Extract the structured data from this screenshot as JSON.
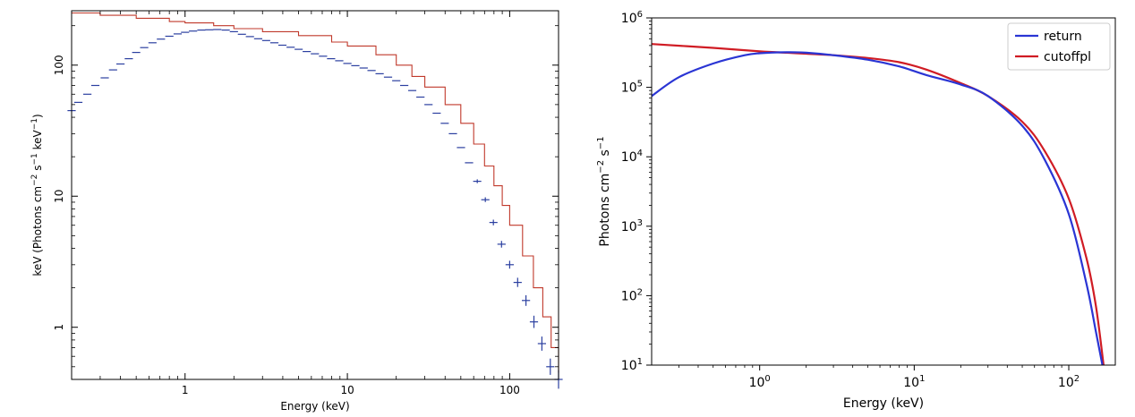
{
  "chart_data": [
    {
      "type": "line",
      "xlabel": "Energy (keV)",
      "ylabel": "keV (Photons cm^-2 s^-1 keV^-1)",
      "xscale": "log",
      "yscale": "log",
      "xlim": [
        0.2,
        200
      ],
      "ylim": [
        0.4,
        260
      ],
      "x_tick_labels": [
        {
          "v": 1,
          "t": "1"
        },
        {
          "v": 10,
          "t": "10"
        },
        {
          "v": 100,
          "t": "100"
        }
      ],
      "y_tick_labels": [
        {
          "v": 1,
          "t": "1"
        },
        {
          "v": 10,
          "t": "10"
        },
        {
          "v": 100,
          "t": "100"
        }
      ],
      "series": [
        {
          "role": "data-points",
          "color": "#2b3fa0",
          "x": [
            0.2,
            0.22,
            0.25,
            0.28,
            0.32,
            0.36,
            0.4,
            0.45,
            0.5,
            0.56,
            0.63,
            0.71,
            0.8,
            0.9,
            1.0,
            1.12,
            1.26,
            1.41,
            1.58,
            1.78,
            2.0,
            2.24,
            2.51,
            2.82,
            3.16,
            3.55,
            3.98,
            4.47,
            5.01,
            5.62,
            6.31,
            7.08,
            7.94,
            8.91,
            10.0,
            11.2,
            12.6,
            14.1,
            15.8,
            17.8,
            20.0,
            22.4,
            25.1,
            28.2,
            31.6,
            35.5,
            39.8,
            44.7,
            50.1,
            56.2,
            63.1,
            70.8,
            79.4,
            89.1,
            100,
            112,
            126,
            141,
            158,
            178,
            200
          ],
          "y": [
            45,
            52,
            60,
            70,
            80,
            92,
            102,
            112,
            125,
            136,
            148,
            158,
            166,
            173,
            178,
            182,
            185,
            186,
            187,
            185,
            180,
            172,
            165,
            159,
            154,
            148,
            142,
            137,
            132,
            127,
            122,
            117,
            112,
            108,
            103,
            99,
            95,
            91,
            86,
            81,
            76,
            70,
            64,
            57,
            50,
            43,
            36,
            30,
            23.5,
            18,
            13,
            9.4,
            6.3,
            4.3,
            3.0,
            2.2,
            1.6,
            1.1,
            0.75,
            0.5,
            0.4
          ]
        },
        {
          "role": "model-step",
          "color": "#c0392b",
          "x": [
            0.2,
            0.3,
            0.5,
            0.8,
            1.0,
            1.5,
            2.0,
            3.0,
            5.0,
            8.0,
            10,
            15,
            20,
            25,
            30,
            40,
            50,
            60,
            70,
            80,
            90,
            100,
            120,
            140,
            160,
            180,
            200
          ],
          "y": [
            250,
            240,
            228,
            215,
            210,
            200,
            190,
            180,
            168,
            150,
            140,
            120,
            100,
            82,
            68,
            50,
            36,
            25,
            17,
            12,
            8.5,
            6.0,
            3.5,
            2.0,
            1.2,
            0.7,
            0.45
          ]
        }
      ]
    },
    {
      "type": "line",
      "xlabel": "Energy (keV)",
      "ylabel": "Photons cm^-2 s^-1",
      "xscale": "log",
      "yscale": "log",
      "xlim": [
        0.2,
        200
      ],
      "ylim": [
        10,
        1000000
      ],
      "x_tick_labels": [
        {
          "v": 1,
          "b": "10",
          "e": "0"
        },
        {
          "v": 10,
          "b": "10",
          "e": "1"
        },
        {
          "v": 100,
          "b": "10",
          "e": "2"
        }
      ],
      "y_tick_labels": [
        {
          "v": 10,
          "b": "10",
          "e": "1"
        },
        {
          "v": 100,
          "b": "10",
          "e": "2"
        },
        {
          "v": 1000,
          "b": "10",
          "e": "3"
        },
        {
          "v": 10000,
          "b": "10",
          "e": "4"
        },
        {
          "v": 100000,
          "b": "10",
          "e": "5"
        },
        {
          "v": 1000000,
          "b": "10",
          "e": "6"
        }
      ],
      "legend_position": "top-right",
      "series": [
        {
          "name": "return",
          "color": "#2a35d4",
          "x": [
            0.2,
            0.3,
            0.5,
            0.8,
            1.0,
            1.5,
            2.0,
            3.0,
            5.0,
            8.0,
            12,
            20,
            30,
            50,
            70,
            100,
            130,
            150,
            165
          ],
          "y": [
            75000,
            140000,
            220000,
            290000,
            310000,
            320000,
            315000,
            290000,
            250000,
            200000,
            150000,
            110000,
            75000,
            28000,
            9000,
            1500,
            150,
            30,
            10
          ]
        },
        {
          "name": "cutoffpl",
          "color": "#d01c24",
          "x": [
            0.2,
            0.5,
            1.0,
            1.5,
            2.0,
            3.0,
            5.0,
            8.0,
            12,
            20,
            30,
            50,
            70,
            100,
            130,
            150,
            168
          ],
          "y": [
            420000,
            370000,
            330000,
            315000,
            305000,
            290000,
            265000,
            230000,
            180000,
            115000,
            75000,
            32000,
            12000,
            2500,
            350,
            70,
            10
          ]
        }
      ]
    }
  ]
}
